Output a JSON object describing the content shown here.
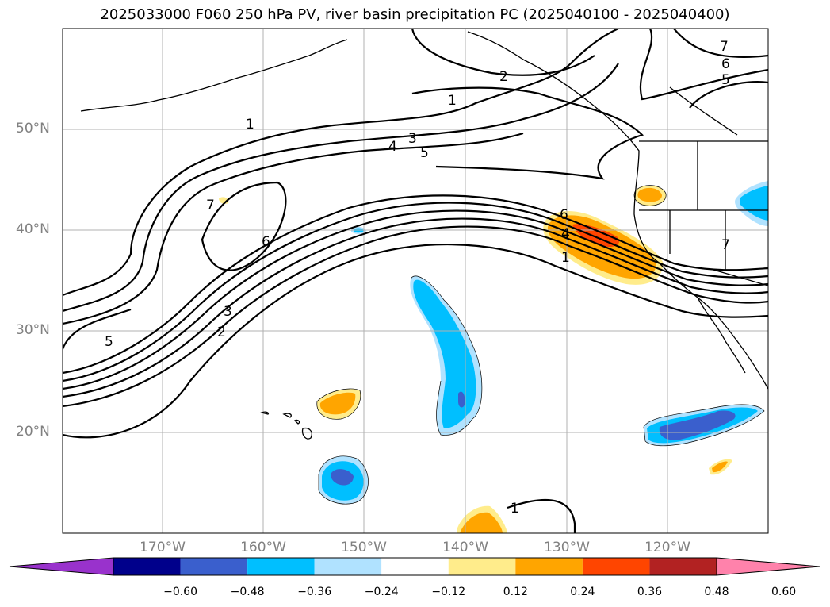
{
  "title": "2025033000 F060 250 hPa PV, river basin precipitation PC (2025040100 - 2025040400)",
  "lat_labels": [
    "50°N",
    "40°N",
    "30°N",
    "20°N"
  ],
  "lon_labels": [
    "170°W",
    "160°W",
    "150°W",
    "140°W",
    "130°W",
    "120°W"
  ],
  "colorbar": {
    "colors": [
      "#9932cc",
      "#00008b",
      "#3a5fcd",
      "#00bfff",
      "#b0e2ff",
      "#ffffff",
      "#ffec8b",
      "#ffa500",
      "#ff4500",
      "#b22222",
      "#ff82ab"
    ],
    "ticks": [
      "−0.60",
      "−0.48",
      "−0.36",
      "−0.24",
      "−0.12",
      "0.12",
      "0.24",
      "0.36",
      "0.48",
      "0.60"
    ]
  },
  "contour_labels": [
    "1",
    "2",
    "3",
    "4",
    "5",
    "6",
    "7"
  ],
  "colors": {
    "gridline": "#b0b0b0",
    "contour": "#000000",
    "coast": "#000000"
  }
}
